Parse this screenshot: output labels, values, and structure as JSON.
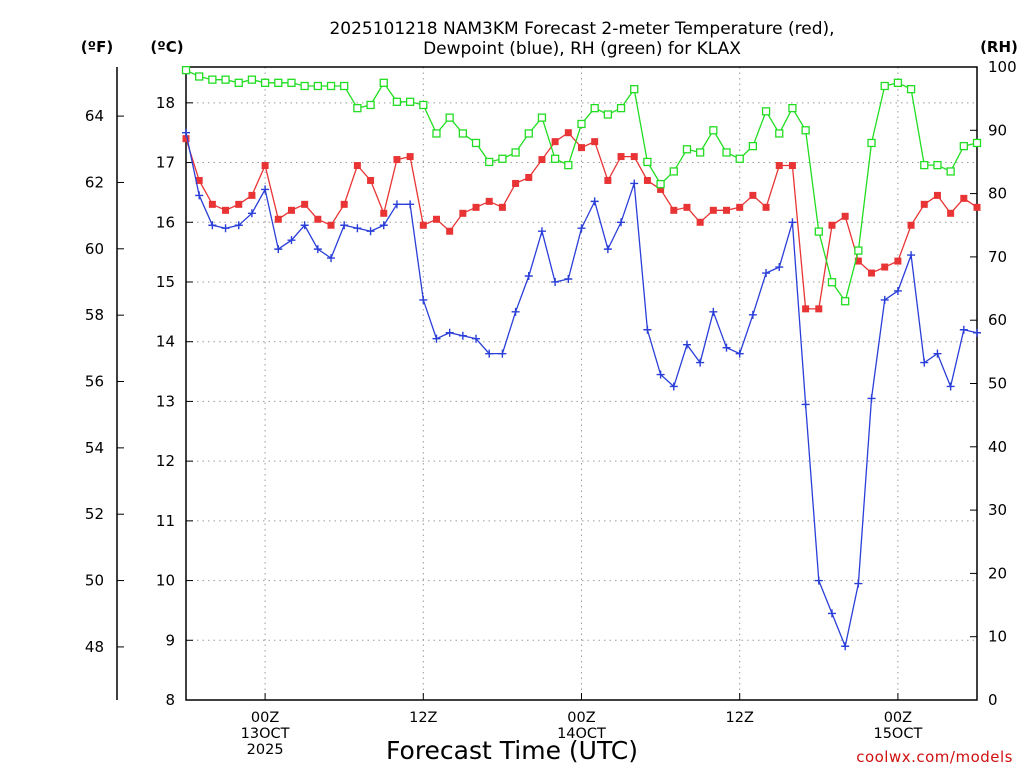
{
  "chart_data": {
    "type": "line",
    "title_line1": "2025101218 NAM3KM Forecast 2-meter Temperature (red),",
    "title_line2": "Dewpoint (blue), RH (green) for KLAX",
    "xlabel": "Forecast Time (UTC)",
    "credit": "coolwx.com/models",
    "units": {
      "fahrenheit": "(ºF)",
      "celsius": "(ºC)",
      "rh": "(RH)"
    },
    "x_ticks": [
      {
        "hour": 6,
        "l1": "00Z",
        "l2": "13OCT",
        "l3": "2025"
      },
      {
        "hour": 18,
        "l1": "12Z",
        "l2": "",
        "l3": ""
      },
      {
        "hour": 30,
        "l1": "00Z",
        "l2": "14OCT",
        "l3": ""
      },
      {
        "hour": 42,
        "l1": "12Z",
        "l2": "",
        "l3": ""
      },
      {
        "hour": 54,
        "l1": "00Z",
        "l2": "15OCT",
        "l3": ""
      }
    ],
    "xlim": [
      0,
      60
    ],
    "celsius_axis": {
      "range": [
        8,
        18.6
      ],
      "ticks": [
        8,
        9,
        10,
        11,
        12,
        13,
        14,
        15,
        16,
        17,
        18
      ]
    },
    "fahrenheit_axis": {
      "ticks": [
        48,
        50,
        52,
        54,
        56,
        58,
        60,
        62,
        64
      ]
    },
    "rh_axis": {
      "range": [
        0,
        100
      ],
      "ticks": [
        0,
        10,
        20,
        30,
        40,
        50,
        60,
        70,
        80,
        90,
        100
      ]
    },
    "hours": [
      0,
      1,
      2,
      3,
      4,
      5,
      6,
      7,
      8,
      9,
      10,
      11,
      12,
      13,
      14,
      15,
      16,
      17,
      18,
      19,
      20,
      21,
      22,
      23,
      24,
      25,
      26,
      27,
      28,
      29,
      30,
      31,
      32,
      33,
      34,
      35,
      36,
      37,
      38,
      39,
      40,
      41,
      42,
      43,
      44,
      45,
      46,
      47,
      48,
      49,
      50,
      51,
      52,
      53,
      54,
      55,
      56,
      57,
      58,
      59,
      60
    ],
    "series": [
      {
        "name": "Temperature (°C)",
        "color": "#e83434",
        "marker": "filled-square",
        "axis": "celsius",
        "values": [
          17.4,
          16.7,
          16.3,
          16.2,
          16.3,
          16.45,
          16.95,
          16.05,
          16.2,
          16.3,
          16.05,
          15.95,
          16.3,
          16.95,
          16.7,
          16.15,
          17.05,
          17.1,
          15.95,
          16.05,
          15.85,
          16.15,
          16.25,
          16.35,
          16.25,
          16.65,
          16.75,
          17.05,
          17.35,
          17.5,
          17.25,
          17.35,
          16.7,
          17.1,
          17.1,
          16.7,
          16.55,
          16.2,
          16.25,
          16.0,
          16.2,
          16.2,
          16.25,
          16.45,
          16.25,
          16.95,
          16.95,
          14.55,
          14.55,
          15.95,
          16.1,
          15.35,
          15.15,
          15.25,
          15.35,
          15.95,
          16.3,
          16.45,
          16.15,
          16.4,
          16.25
        ]
      },
      {
        "name": "Dewpoint (°C)",
        "color": "#2a3ed8",
        "marker": "plus",
        "axis": "celsius",
        "values": [
          17.5,
          16.45,
          15.95,
          15.9,
          15.95,
          16.15,
          16.55,
          15.55,
          15.7,
          15.95,
          15.55,
          15.4,
          15.95,
          15.9,
          15.85,
          15.95,
          16.3,
          16.3,
          14.7,
          14.05,
          14.15,
          14.1,
          14.05,
          13.8,
          13.8,
          14.5,
          15.1,
          15.85,
          15.0,
          15.05,
          15.9,
          16.35,
          15.55,
          16.0,
          16.65,
          14.2,
          13.45,
          13.25,
          13.95,
          13.65,
          14.5,
          13.9,
          13.8,
          14.45,
          15.15,
          15.25,
          16.0,
          12.95,
          10.0,
          9.45,
          8.9,
          9.95,
          13.05,
          14.7,
          14.85,
          15.45,
          13.65,
          13.8,
          13.25,
          14.2,
          14.15
        ]
      },
      {
        "name": "RH (%)",
        "color": "#22dd22",
        "marker": "open-square",
        "axis": "rh",
        "values": [
          99.5,
          98.5,
          98.0,
          98.0,
          97.5,
          98.0,
          97.5,
          97.5,
          97.5,
          97.0,
          97.0,
          97.0,
          97.0,
          93.5,
          94.0,
          97.5,
          94.5,
          94.5,
          94.0,
          89.5,
          92.0,
          89.5,
          88.0,
          85.0,
          85.5,
          86.5,
          89.5,
          92.0,
          85.5,
          84.5,
          91.0,
          93.5,
          92.5,
          93.5,
          96.5,
          85.0,
          81.5,
          83.5,
          87.0,
          86.5,
          90.0,
          86.5,
          85.5,
          87.5,
          93.0,
          89.5,
          93.5,
          90.0,
          74.0,
          66.0,
          63.0,
          71.0,
          88.0,
          97.0,
          97.5,
          96.5,
          84.5,
          84.5,
          83.5,
          87.5,
          88.0
        ]
      }
    ]
  }
}
